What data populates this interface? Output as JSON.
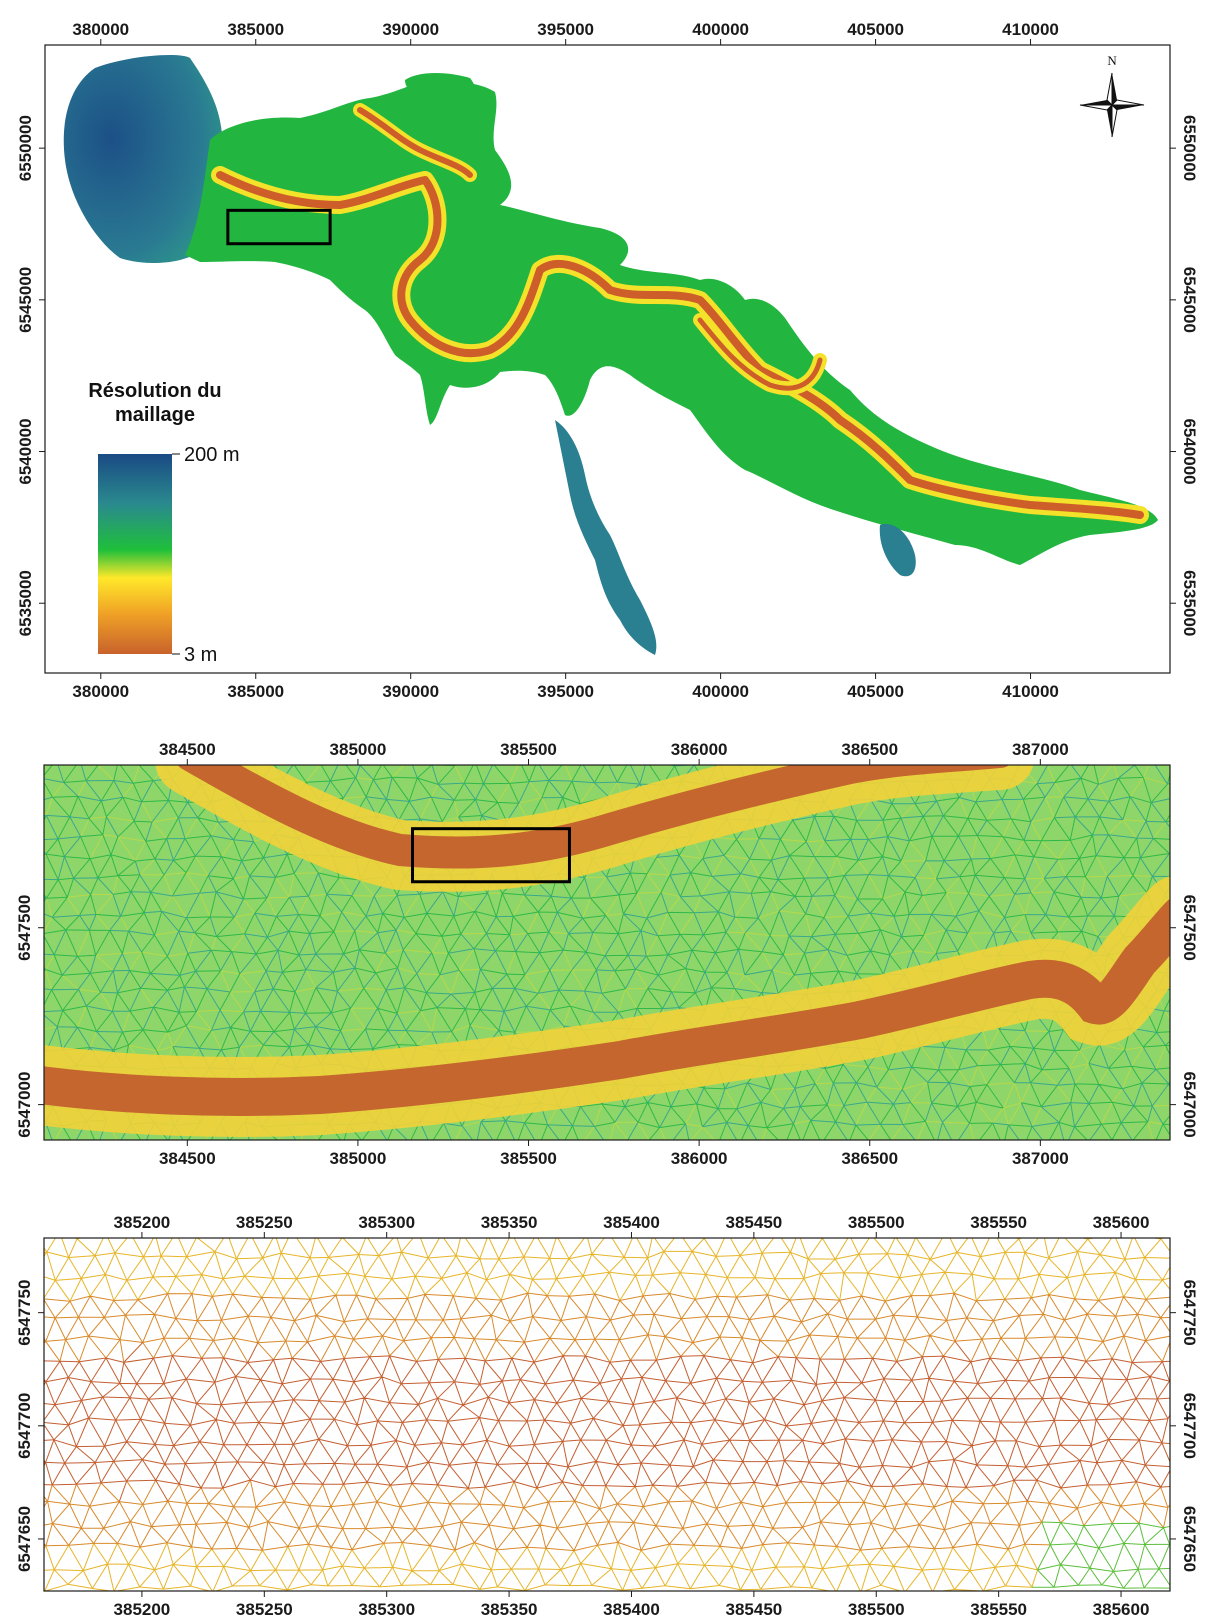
{
  "colors": {
    "background": "#ffffff",
    "frame": "#1a1a1a",
    "high_res": "#c8622c",
    "mid_res": "#ffe82a",
    "low_green": "#1fbf3a",
    "coarse_res": "#1a4a84",
    "inset_box": "#000000"
  },
  "north_arrow": {
    "label": "N",
    "icon": "compass-rose-icon"
  },
  "legend": {
    "title_line1": "Résolution du",
    "title_line2": "maillage",
    "max_label": "200 m",
    "min_label": "3 m",
    "gradient": [
      "#1a4a84",
      "#2a8a8e",
      "#1fbf3a",
      "#ffe82a",
      "#f0a126",
      "#c8622c"
    ]
  },
  "panel1": {
    "x_ticks": [
      "380000",
      "385000",
      "390000",
      "395000",
      "400000",
      "405000",
      "410000"
    ],
    "y_ticks": [
      "6550000",
      "6545000",
      "6540000",
      "6535000"
    ],
    "x_range": [
      378200,
      414500
    ],
    "y_range": [
      6532700,
      6553400
    ],
    "inset_extent": {
      "x": [
        384100,
        387400
      ],
      "y": [
        6546850,
        6547950
      ]
    }
  },
  "panel2": {
    "x_ticks": [
      "384500",
      "385000",
      "385500",
      "386000",
      "386500",
      "387000"
    ],
    "y_ticks": [
      "6547500",
      "6547000"
    ],
    "x_range": [
      384080,
      387380
    ],
    "y_range": [
      6546900,
      6547960
    ],
    "inset_extent": {
      "x": [
        385160,
        385620
      ],
      "y": [
        6547630,
        6547780
      ]
    }
  },
  "panel3": {
    "x_ticks": [
      "385200",
      "385250",
      "385300",
      "385350",
      "385400",
      "385450",
      "385500",
      "385550",
      "385600"
    ],
    "y_ticks": [
      "6547750",
      "6547700",
      "6547650"
    ],
    "x_range": [
      385160,
      385620
    ],
    "y_range": [
      6547627,
      6547783
    ]
  }
}
